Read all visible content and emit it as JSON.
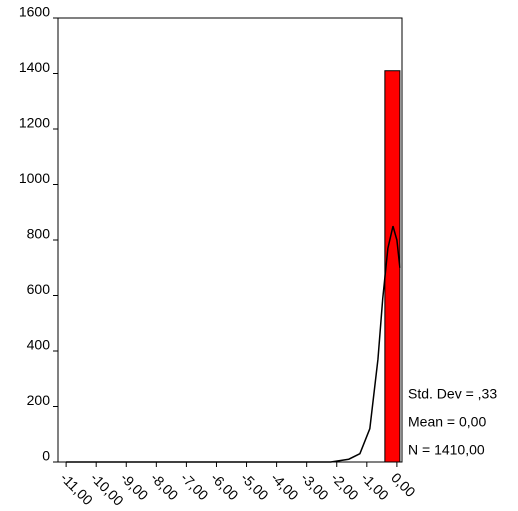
{
  "chart_data": {
    "type": "histogram",
    "bins": [
      -0.4,
      0.1
    ],
    "counts": [
      1410
    ],
    "color": "#ff0000",
    "curve": {
      "x": [
        -11,
        -2.2,
        -1.6,
        -1.23,
        -0.9,
        -0.63,
        -0.47,
        -0.3,
        -0.13,
        0,
        0.1
      ],
      "values": [
        0,
        0,
        10,
        30,
        120,
        370,
        590,
        770,
        850,
        800,
        700
      ],
      "color": "#000000"
    },
    "xlim": [
      -11.27,
      0.17
    ],
    "ylim": [
      0,
      1600
    ],
    "xticks": [
      {
        "value": -11,
        "label": "-11,00"
      },
      {
        "value": -10,
        "label": "-10,00"
      },
      {
        "value": -9,
        "label": "-9,00"
      },
      {
        "value": -8,
        "label": "-8,00"
      },
      {
        "value": -7,
        "label": "-7,00"
      },
      {
        "value": -6,
        "label": "-6,00"
      },
      {
        "value": -5,
        "label": "-5,00"
      },
      {
        "value": -4,
        "label": "-4,00"
      },
      {
        "value": -3,
        "label": "-3,00"
      },
      {
        "value": -2,
        "label": "-2,00"
      },
      {
        "value": -1,
        "label": "-1,00"
      },
      {
        "value": 0,
        "label": "0,00"
      }
    ],
    "yticks": [
      0,
      200,
      400,
      600,
      800,
      1000,
      1200,
      1400,
      1600
    ],
    "stats": [
      "Std. Dev = ,33",
      "Mean = 0,00",
      "N = 1410,00"
    ]
  }
}
